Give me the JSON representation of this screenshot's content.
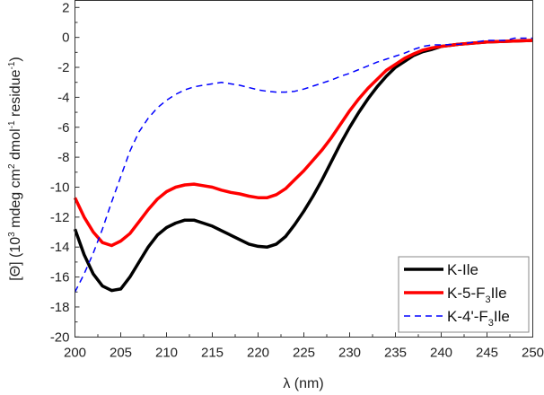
{
  "chart_data": {
    "type": "line",
    "xlabel": "λ (nm)",
    "ylabel_parts": {
      "a": "[Θ] (10",
      "b": "3",
      "c": " mdeg cm",
      "d": "2",
      "e": " dmol",
      "f": "-1",
      "g": " residue",
      "h": "-1",
      "i": ")"
    },
    "xlim": [
      200,
      250
    ],
    "ylim": [
      -20,
      2
    ],
    "xticks": [
      200,
      205,
      210,
      215,
      220,
      225,
      230,
      235,
      240,
      245,
      250
    ],
    "yticks": [
      2,
      0,
      -2,
      -4,
      -6,
      -8,
      -10,
      -12,
      -14,
      -16,
      -18,
      -20
    ],
    "legend_position": "bottom-right",
    "series": [
      {
        "name": "K-Ile",
        "label_parts": [
          "K-Ile",
          "",
          ""
        ],
        "color": "#000000",
        "dash": false,
        "x": [
          200,
          201,
          202,
          203,
          204,
          205,
          206,
          207,
          208,
          209,
          210,
          211,
          212,
          213,
          214,
          215,
          216,
          217,
          218,
          219,
          220,
          221,
          222,
          223,
          224,
          225,
          226,
          227,
          228,
          229,
          230,
          231,
          232,
          233,
          234,
          235,
          236,
          237,
          238,
          239,
          240,
          242,
          245,
          250
        ],
        "y": [
          -12.8,
          -14.5,
          -15.8,
          -16.6,
          -16.9,
          -16.8,
          -16.0,
          -15.0,
          -14.0,
          -13.2,
          -12.7,
          -12.4,
          -12.2,
          -12.2,
          -12.4,
          -12.6,
          -12.9,
          -13.2,
          -13.5,
          -13.8,
          -13.95,
          -14.0,
          -13.8,
          -13.3,
          -12.5,
          -11.6,
          -10.6,
          -9.5,
          -8.3,
          -7.1,
          -6.0,
          -5.0,
          -4.1,
          -3.3,
          -2.6,
          -2.0,
          -1.6,
          -1.2,
          -0.95,
          -0.8,
          -0.6,
          -0.45,
          -0.3,
          -0.2
        ]
      },
      {
        "name": "K-5-F3Ile",
        "label_parts": [
          "K-5-F",
          "3",
          "Ile"
        ],
        "color": "#ff0000",
        "dash": false,
        "x": [
          200,
          201,
          202,
          203,
          204,
          205,
          206,
          207,
          208,
          209,
          210,
          211,
          212,
          213,
          214,
          215,
          216,
          217,
          218,
          219,
          220,
          221,
          222,
          223,
          224,
          225,
          226,
          227,
          228,
          229,
          230,
          231,
          232,
          233,
          234,
          235,
          236,
          237,
          238,
          239,
          240,
          242,
          245,
          250
        ],
        "y": [
          -10.7,
          -12.0,
          -13.0,
          -13.7,
          -13.9,
          -13.6,
          -13.1,
          -12.3,
          -11.5,
          -10.8,
          -10.3,
          -10.0,
          -9.85,
          -9.8,
          -9.9,
          -10.0,
          -10.2,
          -10.35,
          -10.45,
          -10.6,
          -10.7,
          -10.7,
          -10.5,
          -10.1,
          -9.5,
          -8.9,
          -8.2,
          -7.5,
          -6.7,
          -5.8,
          -4.9,
          -4.1,
          -3.4,
          -2.8,
          -2.2,
          -1.8,
          -1.4,
          -1.1,
          -0.85,
          -0.7,
          -0.6,
          -0.45,
          -0.3,
          -0.2
        ]
      },
      {
        "name": "K-4'-F3Ile",
        "label_parts": [
          "K-4'-F",
          "3",
          "Ile"
        ],
        "color": "#0000ff",
        "dash": true,
        "x": [
          200,
          201,
          202,
          203,
          204,
          205,
          206,
          207,
          208,
          209,
          210,
          211,
          212,
          213,
          214,
          215,
          216,
          217,
          218,
          219,
          220,
          221,
          222,
          223,
          224,
          225,
          226,
          227,
          228,
          229,
          230,
          231,
          232,
          233,
          234,
          235,
          236,
          237,
          238,
          239,
          240,
          242,
          245,
          247,
          248,
          250
        ],
        "y": [
          -17.0,
          -15.8,
          -14.4,
          -12.8,
          -11.0,
          -9.3,
          -7.6,
          -6.3,
          -5.4,
          -4.7,
          -4.2,
          -3.8,
          -3.5,
          -3.3,
          -3.2,
          -3.1,
          -3.0,
          -3.1,
          -3.2,
          -3.35,
          -3.5,
          -3.6,
          -3.65,
          -3.65,
          -3.6,
          -3.45,
          -3.25,
          -3.05,
          -2.85,
          -2.6,
          -2.4,
          -2.15,
          -1.9,
          -1.65,
          -1.45,
          -1.25,
          -1.05,
          -0.8,
          -0.6,
          -0.5,
          -0.5,
          -0.45,
          -0.2,
          -0.2,
          -0.05,
          -0.05
        ]
      }
    ]
  }
}
